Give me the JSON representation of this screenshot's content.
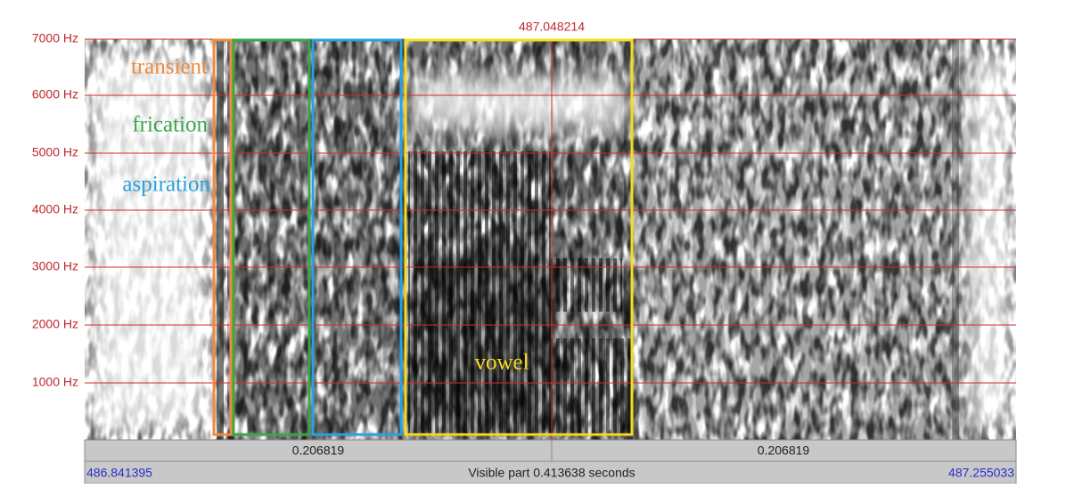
{
  "cursor_time": "487.048214",
  "frequency_labels": [
    "7000 Hz",
    "6000 Hz",
    "5000 Hz",
    "4000 Hz",
    "3000 Hz",
    "2000 Hz",
    "1000 Hz"
  ],
  "durations": [
    "0.206819",
    "0.206819"
  ],
  "start_time": "486.841395",
  "visible_part": "Visible part 0.413638 seconds",
  "end_time": "487.255033",
  "annotations": {
    "transient": "transient",
    "frication": "frication",
    "aspiration": "aspiration",
    "vowel": "vowel"
  }
}
